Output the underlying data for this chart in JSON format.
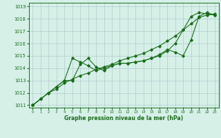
{
  "xlabel": "Graphe pression niveau de la mer (hPa)",
  "bg_color": "#d6f0e8",
  "grid_color": "#b0cccc",
  "line_color": "#1a6b1a",
  "xlim": [
    -0.5,
    23.5
  ],
  "ylim": [
    1010.8,
    1019.3
  ],
  "yticks": [
    1011,
    1012,
    1013,
    1014,
    1015,
    1016,
    1017,
    1018,
    1019
  ],
  "xticks": [
    0,
    1,
    2,
    3,
    4,
    5,
    6,
    7,
    8,
    9,
    10,
    11,
    12,
    13,
    14,
    15,
    16,
    17,
    18,
    19,
    20,
    21,
    22,
    23
  ],
  "line1_x": [
    0,
    1,
    2,
    3,
    4,
    5,
    6,
    7,
    8,
    9,
    10,
    11,
    12,
    13,
    14,
    15,
    16,
    17,
    18,
    19,
    20,
    21,
    22,
    23
  ],
  "line1_y": [
    1011.0,
    1011.5,
    1012.0,
    1012.3,
    1012.8,
    1013.1,
    1013.4,
    1013.6,
    1013.9,
    1014.1,
    1014.3,
    1014.6,
    1014.8,
    1015.0,
    1015.2,
    1015.5,
    1015.8,
    1016.2,
    1016.6,
    1017.1,
    1017.6,
    1018.1,
    1018.3,
    1018.4
  ],
  "line2_x": [
    0,
    1,
    2,
    3,
    4,
    5,
    6,
    7,
    8,
    9,
    10,
    11,
    12,
    13,
    14,
    15,
    16,
    17,
    18,
    19,
    20,
    21,
    22,
    23
  ],
  "line2_y": [
    1011.0,
    1011.5,
    1012.0,
    1012.5,
    1013.0,
    1014.8,
    1014.5,
    1014.2,
    1013.8,
    1014.0,
    1014.2,
    1014.4,
    1014.4,
    1014.5,
    1014.6,
    1014.8,
    1015.1,
    1015.5,
    1015.3,
    1015.0,
    1016.3,
    1018.2,
    1018.5,
    1018.3
  ],
  "line3_x": [
    0,
    1,
    2,
    3,
    4,
    5,
    6,
    7,
    8,
    9,
    10,
    11,
    12,
    13,
    14,
    15,
    16,
    17,
    18,
    19,
    20,
    21,
    22,
    23
  ],
  "line3_y": [
    1011.0,
    1011.5,
    1012.0,
    1012.5,
    1013.0,
    1013.0,
    1014.3,
    1014.8,
    1014.1,
    1013.8,
    1014.2,
    1014.4,
    1014.4,
    1014.5,
    1014.6,
    1014.8,
    1015.0,
    1015.4,
    1016.0,
    1017.1,
    1018.2,
    1018.5,
    1018.4,
    1018.3
  ]
}
